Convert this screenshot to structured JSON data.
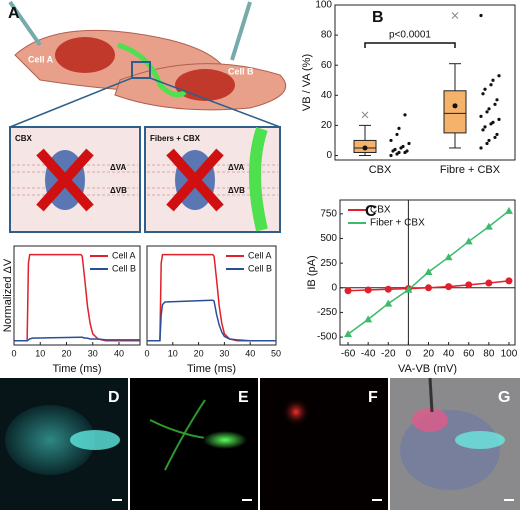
{
  "panel_labels": [
    "A",
    "B",
    "C",
    "D",
    "E",
    "F",
    "G"
  ],
  "illustration": {
    "cell_a": "Cell A",
    "cell_b": "Cell B",
    "left_box": {
      "title": "CBX",
      "labels": [
        "ΔVA",
        "ΔVB"
      ]
    },
    "right_box": {
      "title": "Fibers + CBX",
      "labels": [
        "ΔVA",
        "ΔVB"
      ]
    }
  },
  "chart_data": [
    {
      "type": "line",
      "ylabel": "Normalized ΔV",
      "xlabel": "Time (ms)",
      "x": [
        0,
        5,
        5.5,
        6,
        7,
        25,
        25.5,
        26,
        27,
        28,
        29,
        30,
        32,
        35,
        40,
        48
      ],
      "series": [
        {
          "name": "Cell A",
          "color": "#e0202a",
          "values": [
            0,
            0,
            0.9,
            1,
            1,
            1,
            1,
            0.98,
            0.7,
            0.4,
            0.2,
            0.08,
            0.02,
            0,
            0,
            0
          ]
        },
        {
          "name": "Cell B",
          "color": "#2a4f9a",
          "values": [
            0,
            0,
            0.01,
            0.02,
            0.03,
            0.04,
            0.04,
            0.04,
            0.03,
            0.03,
            0.02,
            0.02,
            0.02,
            0.01,
            0.01,
            0.01
          ]
        }
      ],
      "xlim": [
        0,
        48
      ],
      "xticks": [
        0,
        10,
        20,
        30,
        40
      ],
      "ylim": [
        -0.05,
        1.1
      ],
      "legend": "upper right"
    },
    {
      "type": "line",
      "xlabel": "Time (ms)",
      "x": [
        0,
        5,
        5.5,
        6,
        7,
        25,
        25.5,
        26,
        27,
        28,
        29,
        30,
        32,
        35,
        40,
        50
      ],
      "series": [
        {
          "name": "Cell A",
          "color": "#e0202a",
          "values": [
            0,
            0,
            0.9,
            1,
            1,
            1,
            1,
            0.98,
            0.7,
            0.4,
            0.2,
            0.08,
            0.02,
            0,
            0,
            0
          ]
        },
        {
          "name": "Cell B",
          "color": "#2a4f9a",
          "values": [
            0,
            0,
            0.3,
            0.42,
            0.45,
            0.47,
            0.47,
            0.46,
            0.3,
            0.18,
            0.1,
            0.05,
            0.02,
            0.01,
            0,
            0
          ]
        }
      ],
      "xlim": [
        0,
        50
      ],
      "xticks": [
        0,
        10,
        20,
        30,
        40,
        50
      ],
      "ylim": [
        -0.05,
        1.1
      ],
      "legend": "upper right"
    },
    {
      "type": "box",
      "ylabel": "VB / VA (%)",
      "categories": [
        "CBX",
        "Fibre + CBX"
      ],
      "color": "#f5b26b",
      "boxes": [
        {
          "low": 0,
          "q1": 2,
          "median": 5,
          "q3": 10,
          "high": 20,
          "mean": 5,
          "outlier": 27
        },
        {
          "low": 5,
          "q1": 15,
          "median": 28,
          "q3": 43,
          "high": 61,
          "mean": 33,
          "outlier": 93
        }
      ],
      "points": [
        [
          0,
          1,
          2,
          2,
          3,
          3,
          4,
          5,
          6,
          8,
          10,
          14,
          18,
          27
        ],
        [
          5,
          8,
          10,
          12,
          14,
          17,
          19,
          21,
          22,
          24,
          26,
          29,
          31,
          34,
          37,
          41,
          44,
          47,
          50,
          53,
          93
        ]
      ],
      "annotation": "p<0.0001",
      "ylim": [
        -3,
        100
      ],
      "yticks": [
        0,
        20,
        40,
        60,
        80,
        100
      ]
    },
    {
      "type": "line",
      "ylabel": "IB (pA)",
      "xlabel": "VA-VB (mV)",
      "x": [
        -60,
        -40,
        -20,
        0,
        20,
        40,
        60,
        80,
        100
      ],
      "series": [
        {
          "name": "CBX",
          "color": "#e0202a",
          "marker": "circle",
          "values": [
            -30,
            -22,
            -15,
            -8,
            0,
            12,
            30,
            48,
            70
          ]
        },
        {
          "name": "Fiber + CBX",
          "color": "#3dbb6b",
          "marker": "triangle",
          "values": [
            -470,
            -320,
            -160,
            -20,
            160,
            310,
            470,
            620,
            780
          ]
        }
      ],
      "xlim": [
        -68,
        106
      ],
      "xticks": [
        -60,
        -40,
        -20,
        0,
        20,
        40,
        60,
        80,
        100
      ],
      "ylim": [
        -580,
        890
      ],
      "yticks": [
        -500,
        -250,
        0,
        250,
        500,
        750
      ],
      "legend": "upper left",
      "zero_lines": true
    }
  ]
}
